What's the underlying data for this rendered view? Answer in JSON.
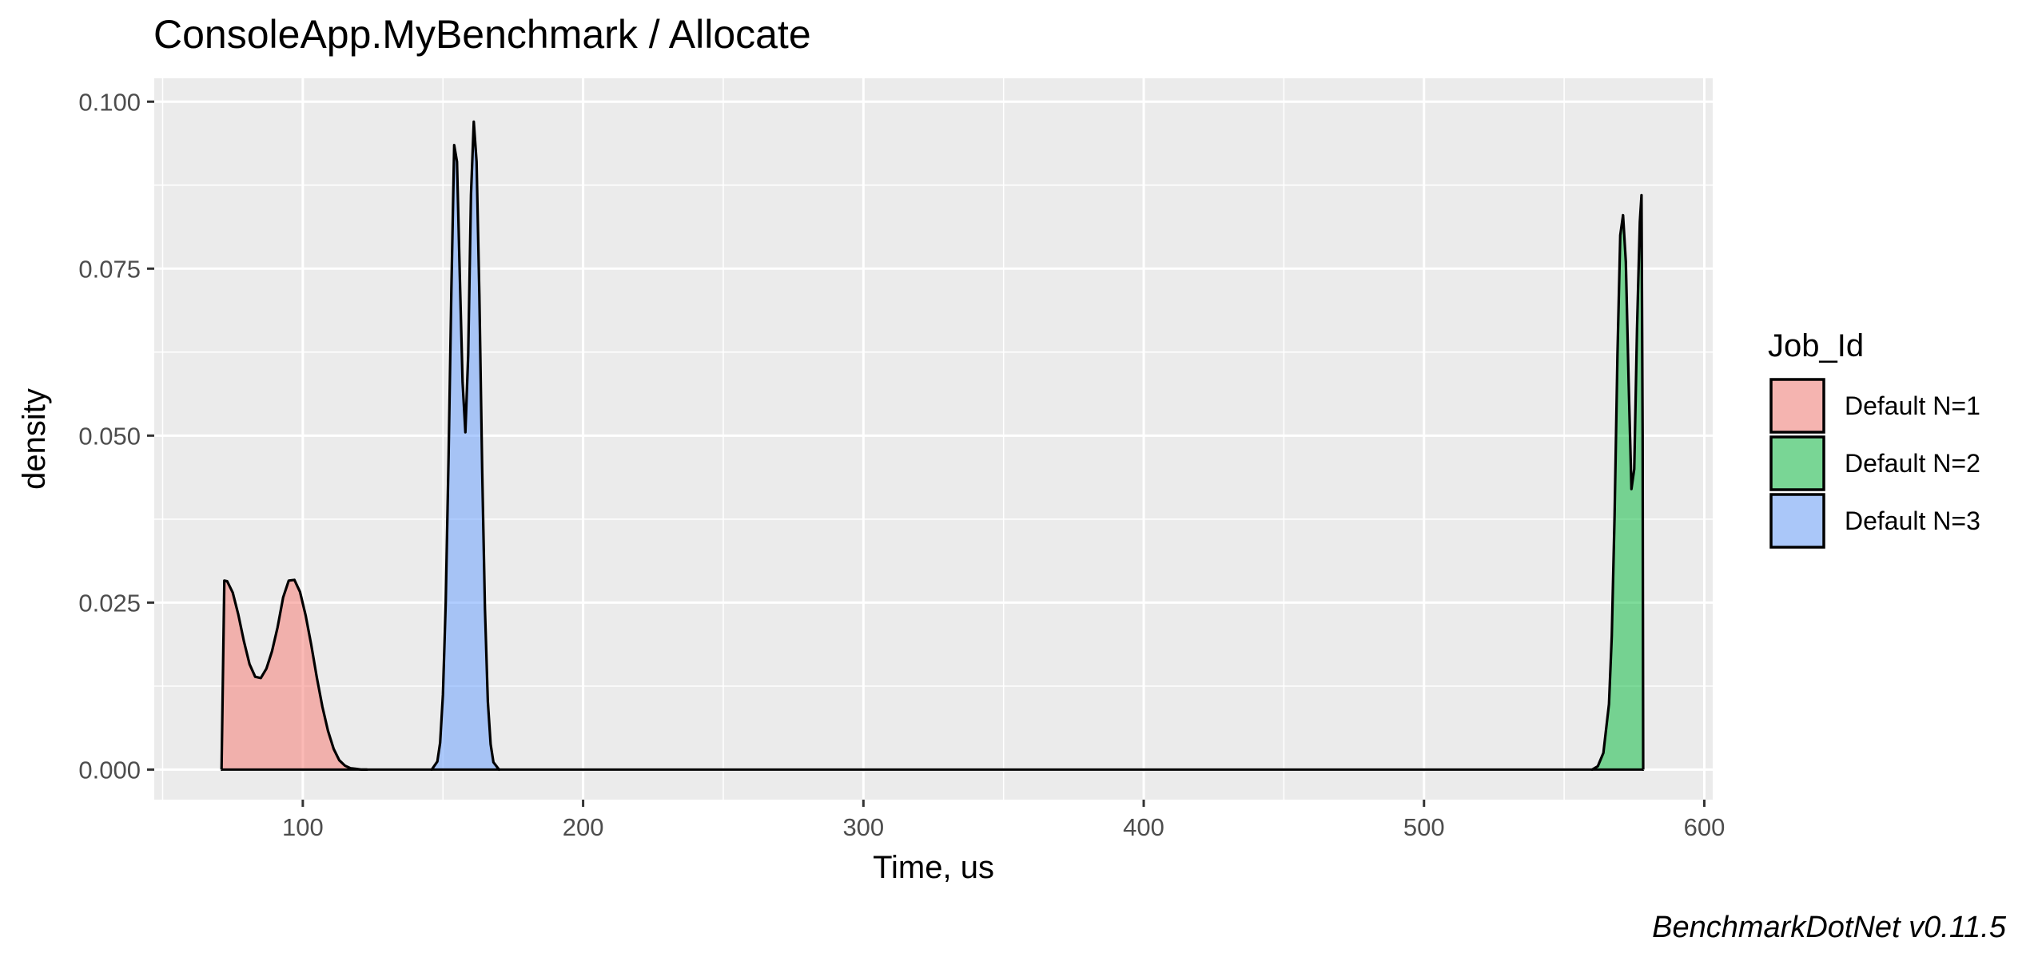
{
  "chart_data": {
    "type": "area",
    "title": "ConsoleApp.MyBenchmark / Allocate",
    "xlabel": "Time, us",
    "ylabel": "density",
    "xlim": [
      47,
      603
    ],
    "ylim": [
      -0.0045,
      0.1035
    ],
    "x_ticks": [
      100,
      200,
      300,
      400,
      500,
      600
    ],
    "x_tick_labels": [
      "100",
      "200",
      "300",
      "400",
      "500",
      "600"
    ],
    "x_minor_ticks": [
      50,
      150,
      250,
      350,
      450,
      550
    ],
    "y_ticks": [
      0,
      0.025,
      0.05,
      0.075,
      0.1
    ],
    "y_tick_labels": [
      "0.000",
      "0.025",
      "0.050",
      "0.075",
      "0.100"
    ],
    "y_minor_ticks": [
      0.0125,
      0.0375,
      0.0625,
      0.0875
    ],
    "grid": true,
    "legend": {
      "title": "Job_Id",
      "placement": "right"
    },
    "series": [
      {
        "name": "Default N=1",
        "color": "#F8766D",
        "x": [
          71,
          72,
          73,
          75,
          77,
          79,
          81,
          83,
          85,
          87,
          89,
          91,
          93,
          95,
          97,
          99,
          101,
          103,
          105,
          107,
          109,
          111,
          113,
          115,
          117,
          119,
          121,
          123
        ],
        "y": [
          0,
          0.0283,
          0.0282,
          0.0265,
          0.0232,
          0.0192,
          0.0158,
          0.0139,
          0.0137,
          0.0151,
          0.0177,
          0.0213,
          0.0258,
          0.0283,
          0.0284,
          0.0266,
          0.0231,
          0.0187,
          0.0138,
          0.0094,
          0.0058,
          0.0031,
          0.0014,
          0.0006,
          0.0002,
          0.0001,
          0,
          0
        ]
      },
      {
        "name": "Default N=2",
        "color": "#00BA38",
        "x": [
          560,
          562,
          564,
          566,
          567,
          568,
          569,
          570,
          571,
          572,
          573,
          574,
          575,
          576,
          577,
          577.6,
          578,
          578.2
        ],
        "y": [
          0,
          0.0005,
          0.0025,
          0.0098,
          0.02,
          0.038,
          0.062,
          0.08,
          0.083,
          0.076,
          0.058,
          0.042,
          0.045,
          0.066,
          0.082,
          0.086,
          0.05,
          0
        ]
      },
      {
        "name": "Default N=3",
        "color": "#619CFF",
        "x": [
          146,
          148,
          149,
          150,
          151,
          152,
          153,
          154,
          155,
          156,
          157,
          158,
          159,
          160,
          161,
          162,
          163,
          164,
          165,
          166,
          167,
          168,
          170
        ],
        "y": [
          0,
          0.0012,
          0.004,
          0.0112,
          0.025,
          0.047,
          0.072,
          0.0935,
          0.091,
          0.074,
          0.058,
          0.0505,
          0.062,
          0.086,
          0.097,
          0.091,
          0.071,
          0.045,
          0.024,
          0.0102,
          0.0038,
          0.0011,
          0
        ]
      }
    ],
    "baseline_x": [
      71,
      578.2
    ]
  },
  "footer": {
    "caption": "BenchmarkDotNet v0.11.5"
  }
}
